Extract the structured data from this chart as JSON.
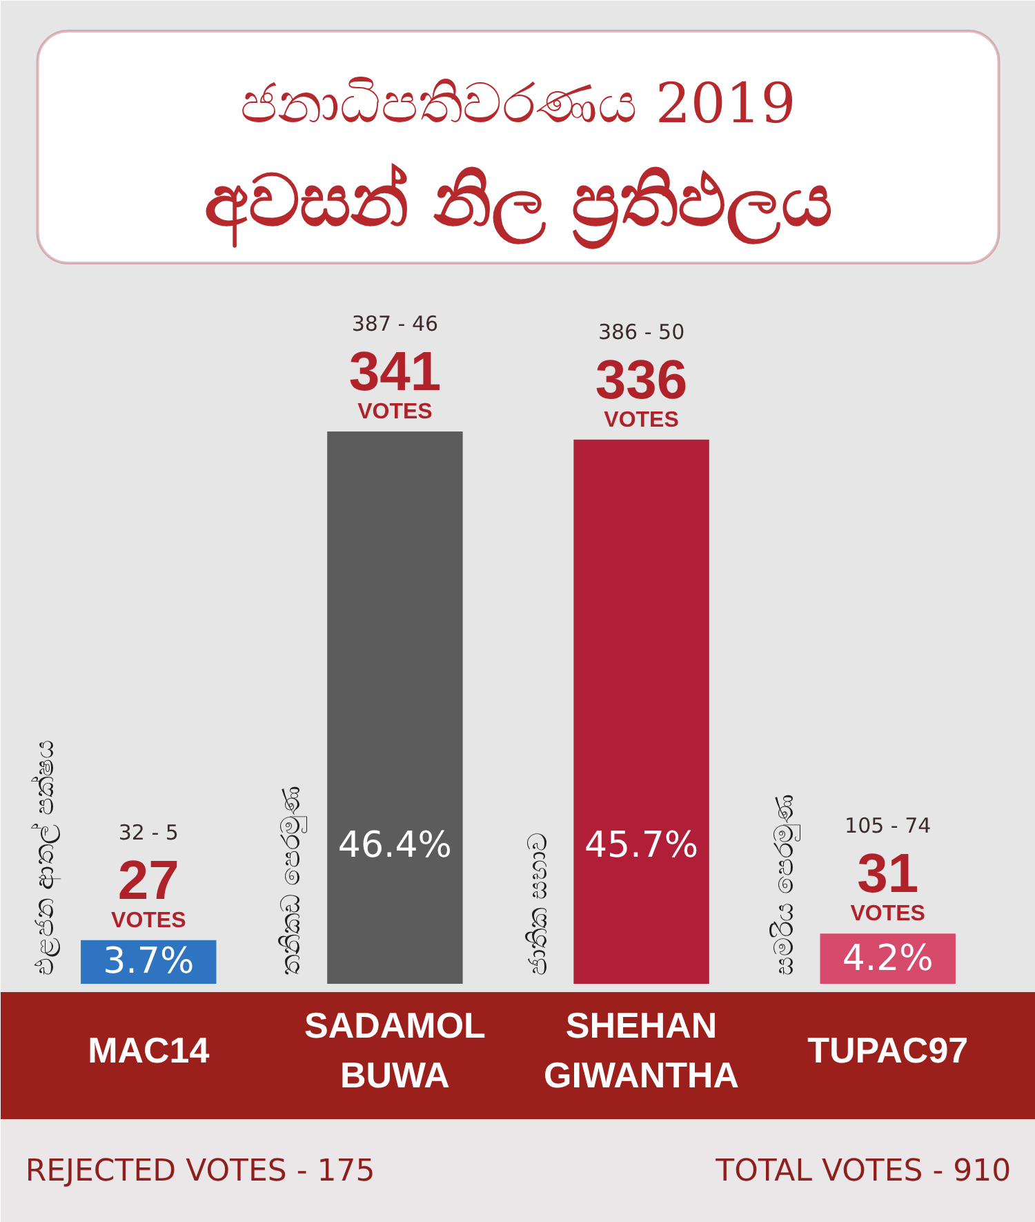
{
  "chart_data": {
    "type": "bar",
    "title": "ජනාධිපතිවරණය 2019",
    "subtitle": "අවසන් නිල ප්‍රතිඵලය",
    "categories": [
      "MAC14",
      "SADAMOL BUWA",
      "SHEHAN GIWANTHA",
      "TUPAC97"
    ],
    "values": [
      27,
      341,
      336,
      31
    ],
    "colors": [
      "#2e74c0",
      "#5c5c5c",
      "#b01f37",
      "#d64a6b"
    ],
    "data_labels": true,
    "annotations": [
      "32 - 5",
      "VOTES",
      "3.7%",
      "එළජන ආතල් පක්ෂය",
      "387 - 46",
      "VOTES",
      "46.4%",
      "තනිකඩ පෙරමුණ",
      "386 - 50",
      "VOTES",
      "45.7%",
      "ජාතික සභාව",
      "105 - 74",
      "VOTES",
      "4.2%",
      "සමරිය පෙරමුණ",
      "REJECTED VOTES - 175",
      "TOTAL VOTES - 910"
    ]
  }
}
